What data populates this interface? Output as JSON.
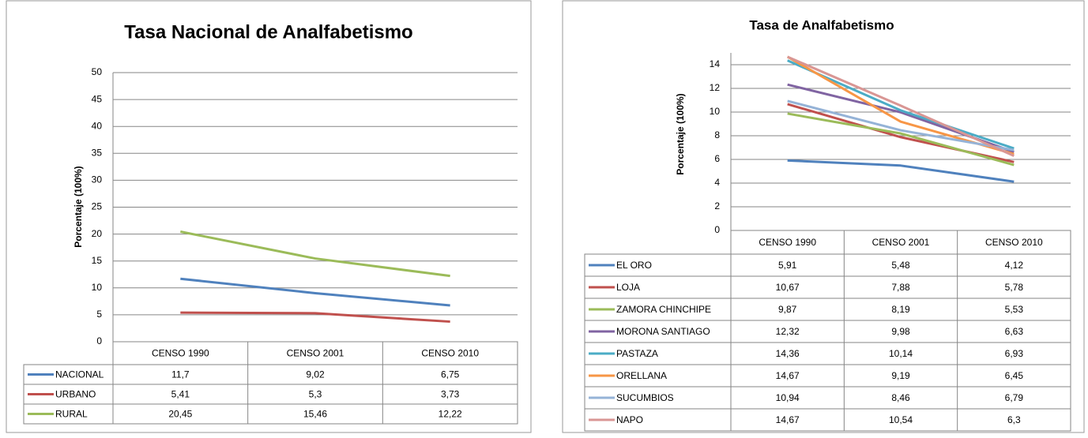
{
  "chart_data": [
    {
      "type": "line",
      "title": "Tasa Nacional de Analfabetismo",
      "y_label": "Porcentaje (100%)",
      "categories": [
        "CENSO 1990",
        "CENSO 2001",
        "CENSO 2010"
      ],
      "ylim": [
        0,
        50
      ],
      "yticks": [
        0,
        5,
        10,
        15,
        20,
        25,
        30,
        35,
        40,
        45,
        50
      ],
      "grid": true,
      "series": [
        {
          "name": "NACIONAL",
          "color": "#4f81bd",
          "values": [
            11.7,
            9.02,
            6.75
          ],
          "value_labels": [
            "11,7",
            "9,02",
            "6,75"
          ]
        },
        {
          "name": "URBANO",
          "color": "#c0504d",
          "values": [
            5.41,
            5.3,
            3.73
          ],
          "value_labels": [
            "5,41",
            "5,3",
            "3,73"
          ]
        },
        {
          "name": "RURAL",
          "color": "#9bbb59",
          "values": [
            20.45,
            15.46,
            12.22
          ],
          "value_labels": [
            "20,45",
            "15,46",
            "12,22"
          ]
        }
      ]
    },
    {
      "type": "line",
      "title": "Tasa de Analfabetismo",
      "y_label": "Porcentaje (100%)",
      "categories": [
        "CENSO 1990",
        "CENSO 2001",
        "CENSO 2010"
      ],
      "ylim": [
        0,
        15
      ],
      "yticks": [
        0,
        2,
        4,
        6,
        8,
        10,
        12,
        14
      ],
      "grid": true,
      "series": [
        {
          "name": "EL ORO",
          "color": "#4f81bd",
          "values": [
            5.91,
            5.48,
            4.12
          ],
          "value_labels": [
            "5,91",
            "5,48",
            "4,12"
          ]
        },
        {
          "name": "LOJA",
          "color": "#c0504d",
          "values": [
            10.67,
            7.88,
            5.78
          ],
          "value_labels": [
            "10,67",
            "7,88",
            "5,78"
          ]
        },
        {
          "name": "ZAMORA CHINCHIPE",
          "color": "#9bbb59",
          "values": [
            9.87,
            8.19,
            5.53
          ],
          "value_labels": [
            "9,87",
            "8,19",
            "5,53"
          ]
        },
        {
          "name": "MORONA SANTIAGO",
          "color": "#8064a2",
          "values": [
            12.32,
            9.98,
            6.63
          ],
          "value_labels": [
            "12,32",
            "9,98",
            "6,63"
          ]
        },
        {
          "name": "PASTAZA",
          "color": "#4bacc6",
          "values": [
            14.36,
            10.14,
            6.93
          ],
          "value_labels": [
            "14,36",
            "10,14",
            "6,93"
          ]
        },
        {
          "name": "ORELLANA",
          "color": "#f79646",
          "values": [
            14.67,
            9.19,
            6.45
          ],
          "value_labels": [
            "14,67",
            "9,19",
            "6,45"
          ]
        },
        {
          "name": "SUCUMBIOS",
          "color": "#95b3d7",
          "values": [
            10.94,
            8.46,
            6.79
          ],
          "value_labels": [
            "10,94",
            "8,46",
            "6,79"
          ]
        },
        {
          "name": "NAPO",
          "color": "#d99694",
          "values": [
            14.67,
            10.54,
            6.3
          ],
          "value_labels": [
            "14,67",
            "10,54",
            "6,3"
          ]
        }
      ]
    }
  ]
}
